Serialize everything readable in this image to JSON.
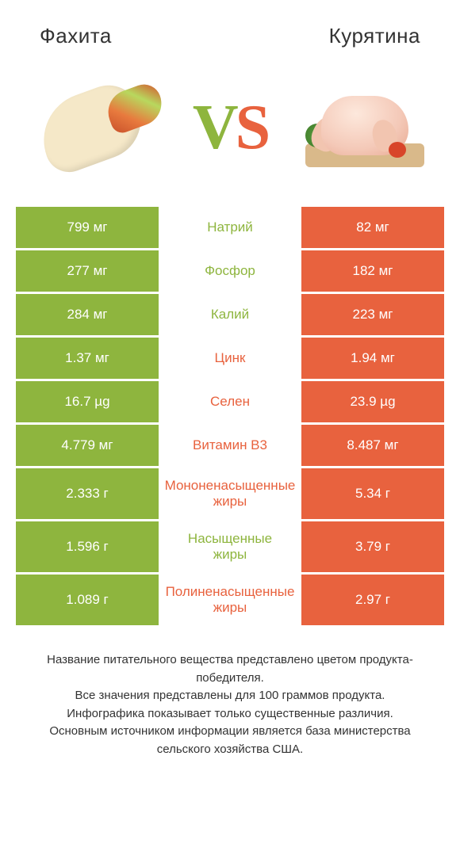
{
  "colors": {
    "left": "#8eb53e",
    "right": "#e8623e",
    "background": "#ffffff",
    "text": "#333333"
  },
  "header": {
    "left_title": "Фахита",
    "right_title": "Курятина"
  },
  "vs": {
    "v": "V",
    "s": "S"
  },
  "rows": [
    {
      "left": "799 мг",
      "label": "Натрий",
      "right": "82 мг",
      "winner": "left",
      "tall": false
    },
    {
      "left": "277 мг",
      "label": "Фосфор",
      "right": "182 мг",
      "winner": "left",
      "tall": false
    },
    {
      "left": "284 мг",
      "label": "Калий",
      "right": "223 мг",
      "winner": "left",
      "tall": false
    },
    {
      "left": "1.37 мг",
      "label": "Цинк",
      "right": "1.94 мг",
      "winner": "right",
      "tall": false
    },
    {
      "left": "16.7 µg",
      "label": "Селен",
      "right": "23.9 µg",
      "winner": "right",
      "tall": false
    },
    {
      "left": "4.779 мг",
      "label": "Витамин B3",
      "right": "8.487 мг",
      "winner": "right",
      "tall": false
    },
    {
      "left": "2.333 г",
      "label": "Мононенасыщенные\nжиры",
      "right": "5.34 г",
      "winner": "right",
      "tall": true
    },
    {
      "left": "1.596 г",
      "label": "Насыщенные\nжиры",
      "right": "3.79 г",
      "winner": "left",
      "tall": true
    },
    {
      "left": "1.089 г",
      "label": "Полиненасыщенные\nжиры",
      "right": "2.97 г",
      "winner": "right",
      "tall": true
    }
  ],
  "footer": {
    "line1": "Название питательного вещества представлено цветом продукта-победителя.",
    "line2": "Все значения представлены для 100 граммов продукта.",
    "line3": "Инфографика показывает только существенные различия.",
    "line4": "Основным источником информации является база министерства сельского хозяйства США."
  }
}
